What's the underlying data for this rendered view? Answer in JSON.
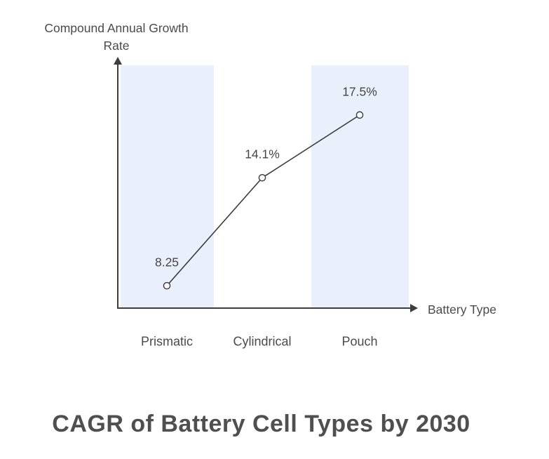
{
  "chart_data": {
    "type": "line",
    "categories": [
      "Prismatic",
      "Cylindrical",
      "Pouch"
    ],
    "values": [
      8.25,
      14.1,
      17.5
    ],
    "value_labels": [
      "8.25",
      "14.1%",
      "17.5%"
    ],
    "title": "CAGR of Battery Cell Types by 2030",
    "xlabel": "Battery Type",
    "ylabel": "Compound Annual Growth Rate",
    "ylim": [
      7,
      20
    ],
    "grid": false,
    "legend": false,
    "highlighted_categories": [
      "Prismatic",
      "Pouch"
    ],
    "colors": {
      "highlight_band": "#e9f0fc",
      "line": "#3d3d3d",
      "marker_fill": "#fafbfd",
      "axis": "#3d3d3d",
      "label_text": "#4a4a4a",
      "title_text": "#4f4f4f",
      "background": "#ffffff"
    }
  }
}
